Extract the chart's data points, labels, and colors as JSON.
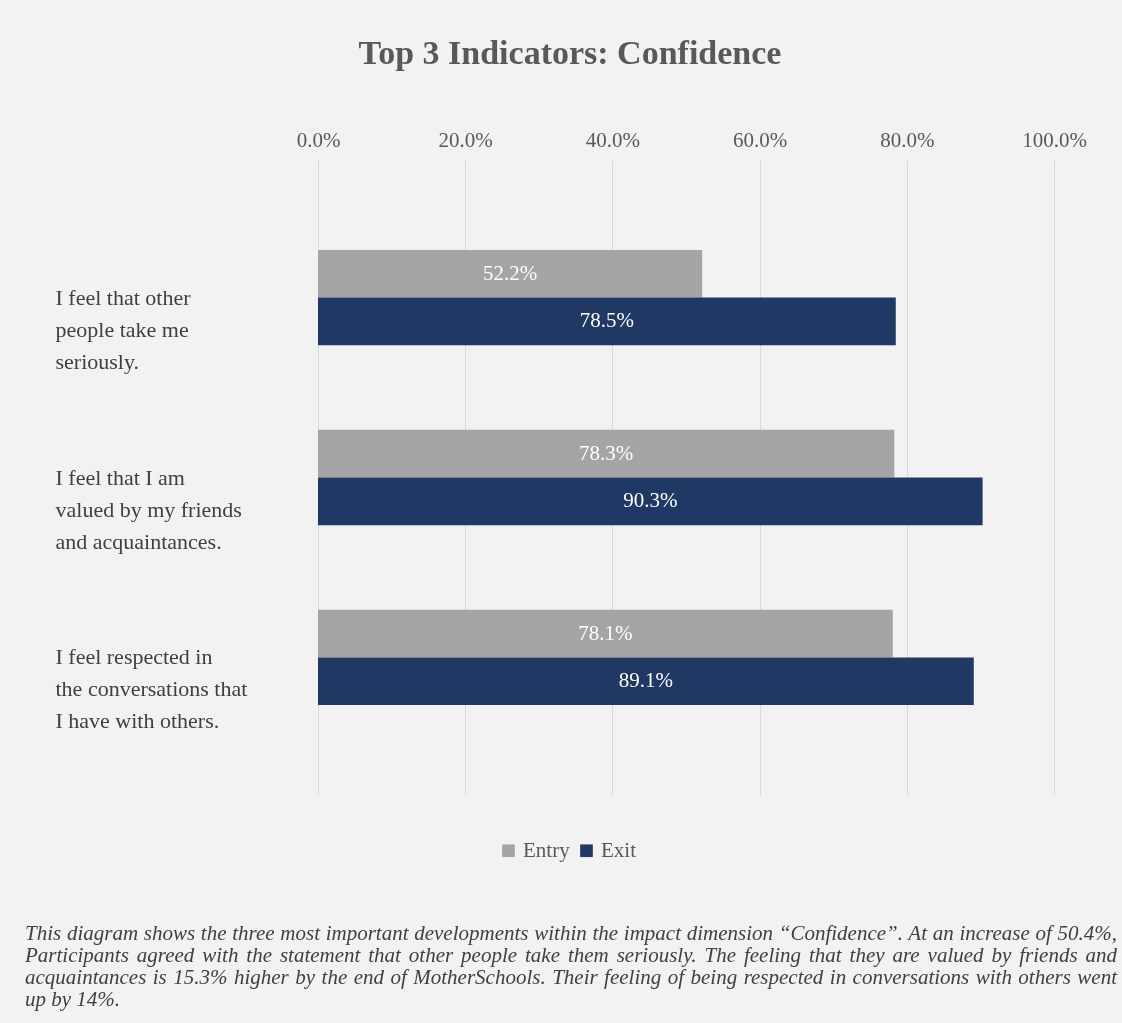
{
  "chart_data": {
    "type": "bar",
    "orientation": "horizontal",
    "title": "Top 3 Indicators: Confidence",
    "categories": [
      "I feel that other people take me seriously.",
      "I feel that I am valued by my friends and acquaintances.",
      "I feel respected in the conversations that I have with others."
    ],
    "series": [
      {
        "name": "Entry",
        "color": "#a5a5a5",
        "values": [
          52.2,
          78.3,
          78.1
        ],
        "value_labels": [
          "52.2%",
          "78.3%",
          "78.1%"
        ]
      },
      {
        "name": "Exit",
        "color": "#1f3864",
        "values": [
          78.5,
          90.3,
          89.1
        ],
        "value_labels": [
          "78.5%",
          "90.3%",
          "89.1%"
        ]
      }
    ],
    "xlim": [
      0,
      100
    ],
    "xticks": [
      {
        "value": 0,
        "label": "0.0%"
      },
      {
        "value": 20,
        "label": "20.0%"
      },
      {
        "value": 40,
        "label": "40.0%"
      },
      {
        "value": 60,
        "label": "60.0%"
      },
      {
        "value": 80,
        "label": "80.0%"
      },
      {
        "value": 100,
        "label": "100.0%"
      }
    ],
    "grid": "x",
    "legend": "bottom",
    "annotations": [
      "This diagram shows the three most important developments within the impact dimension “Confidence”. At an increase of 50.4%, Participants agreed with the statement that other people take them seriously. The feeling that they are valued by friends and acquaintances is 15.3% higher by the end of MotherSchools. Their feeling of being respected in conversations with others went up by 14%."
    ]
  }
}
